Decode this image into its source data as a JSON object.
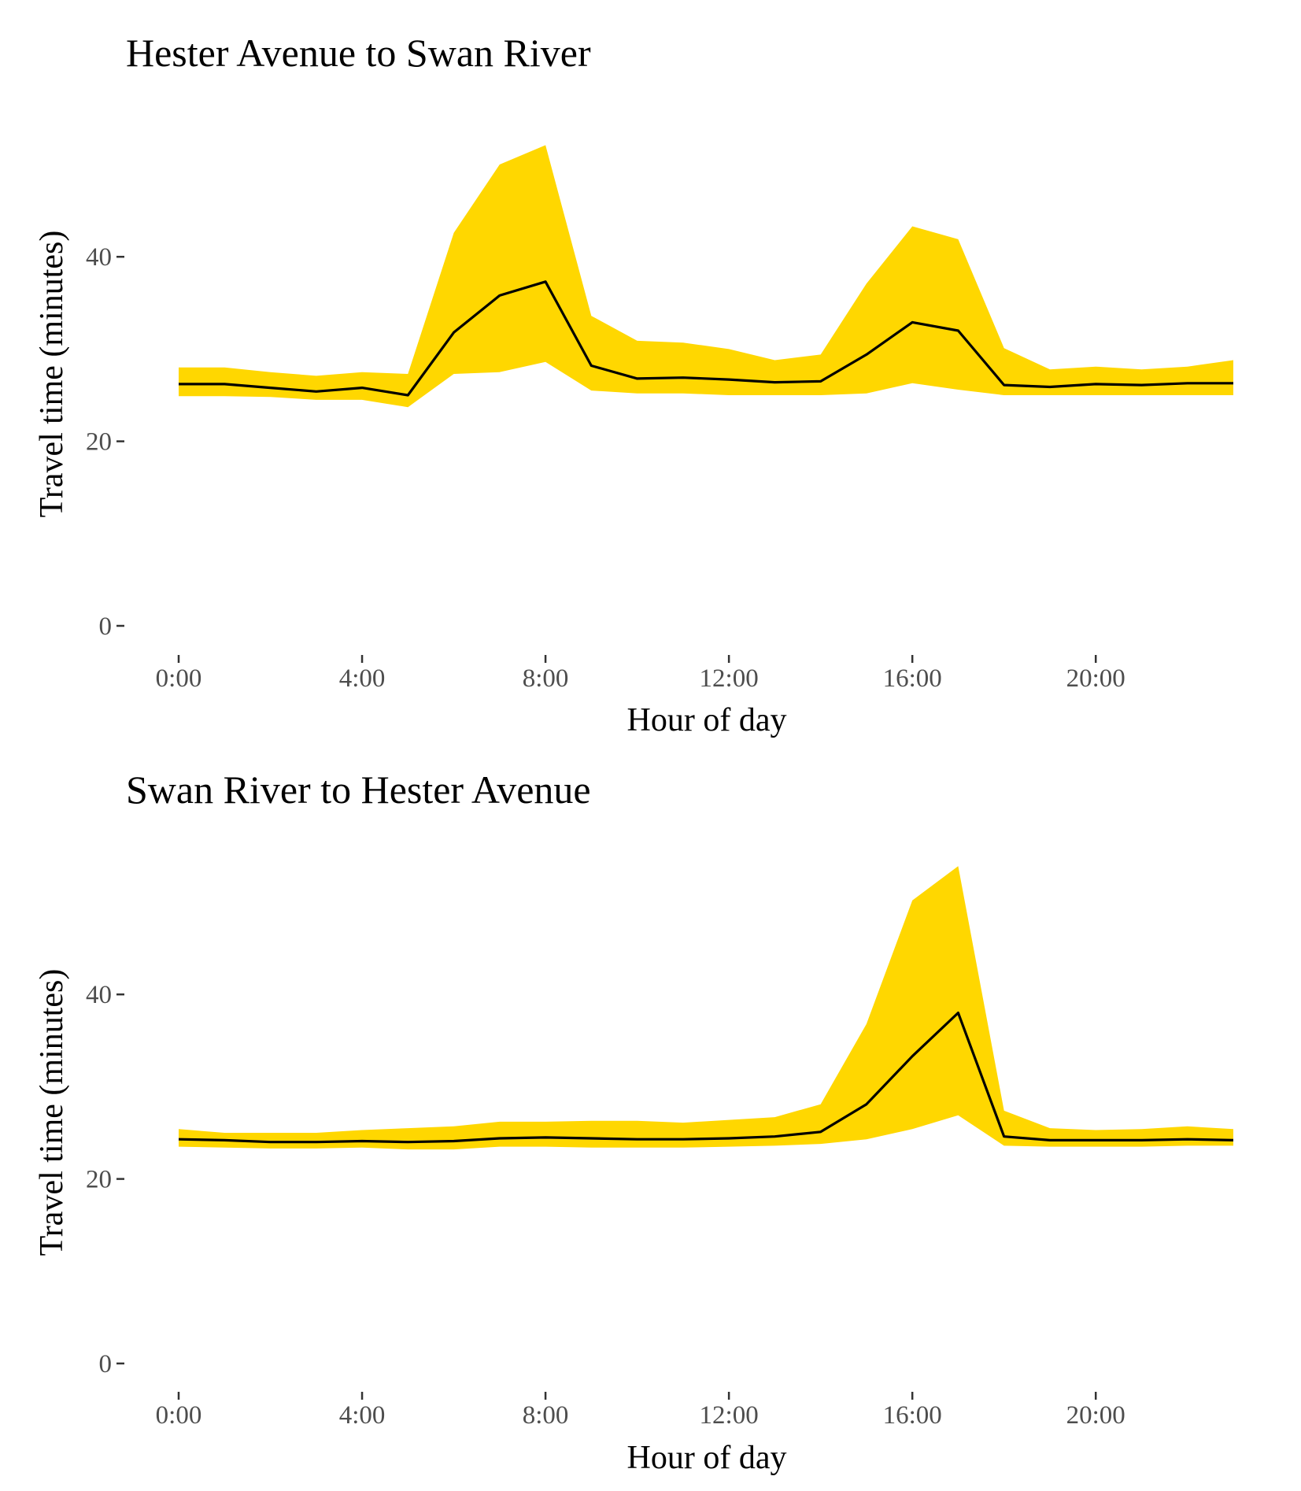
{
  "chart_data": [
    {
      "type": "area",
      "title": "Hester Avenue to Swan River",
      "xlabel": "Hour of day",
      "ylabel": "Travel time (minutes)",
      "xlim": [
        0,
        23
      ],
      "ylim": [
        0,
        55
      ],
      "x_ticks": [
        0,
        4,
        8,
        12,
        16,
        20
      ],
      "x_tick_labels": [
        "0:00",
        "4:00",
        "8:00",
        "12:00",
        "16:00",
        "20:00"
      ],
      "y_ticks": [
        0,
        20,
        40
      ],
      "y_tick_labels": [
        "0",
        "20",
        "40"
      ],
      "grid": false,
      "band_color": "#FFD700",
      "line_color": "#000000",
      "x": [
        0,
        1,
        2,
        3,
        4,
        5,
        6,
        7,
        8,
        9,
        10,
        11,
        12,
        13,
        14,
        15,
        16,
        17,
        18,
        19,
        20,
        21,
        22,
        23
      ],
      "median": [
        26.2,
        26.2,
        25.8,
        25.4,
        25.8,
        25.0,
        31.8,
        35.8,
        37.3,
        28.2,
        26.8,
        26.9,
        26.7,
        26.4,
        26.5,
        29.4,
        32.9,
        32.0,
        26.1,
        25.9,
        26.2,
        26.1,
        26.3,
        26.3
      ],
      "lower": [
        24.9,
        24.9,
        24.8,
        24.5,
        24.5,
        23.7,
        27.3,
        27.5,
        28.6,
        25.5,
        25.2,
        25.2,
        25.0,
        25.0,
        25.0,
        25.2,
        26.3,
        25.6,
        25.0,
        25.0,
        25.0,
        25.0,
        25.0,
        25.0
      ],
      "upper": [
        28.0,
        28.0,
        27.5,
        27.1,
        27.5,
        27.3,
        42.6,
        50.0,
        52.1,
        33.6,
        30.9,
        30.7,
        30.0,
        28.8,
        29.4,
        37.1,
        43.3,
        41.9,
        30.1,
        27.8,
        28.1,
        27.8,
        28.1,
        28.8
      ]
    },
    {
      "type": "area",
      "title": "Swan River to Hester Avenue",
      "xlabel": "Hour of day",
      "ylabel": "Travel time (minutes)",
      "xlim": [
        0,
        23
      ],
      "ylim": [
        0,
        55
      ],
      "x_ticks": [
        0,
        4,
        8,
        12,
        16,
        20
      ],
      "x_tick_labels": [
        "0:00",
        "4:00",
        "8:00",
        "12:00",
        "16:00",
        "20:00"
      ],
      "y_ticks": [
        0,
        20,
        40
      ],
      "y_tick_labels": [
        "0",
        "20",
        "40"
      ],
      "grid": false,
      "band_color": "#FFD700",
      "line_color": "#000000",
      "x": [
        0,
        1,
        2,
        3,
        4,
        5,
        6,
        7,
        8,
        9,
        10,
        11,
        12,
        13,
        14,
        15,
        16,
        17,
        18,
        19,
        20,
        21,
        22,
        23
      ],
      "median": [
        24.3,
        24.2,
        24.0,
        24.0,
        24.1,
        24.0,
        24.1,
        24.4,
        24.5,
        24.4,
        24.3,
        24.3,
        24.4,
        24.6,
        25.1,
        28.1,
        33.3,
        38.0,
        24.6,
        24.2,
        24.2,
        24.2,
        24.3,
        24.2
      ],
      "lower": [
        23.5,
        23.4,
        23.3,
        23.3,
        23.4,
        23.2,
        23.2,
        23.5,
        23.5,
        23.4,
        23.4,
        23.4,
        23.5,
        23.6,
        23.8,
        24.3,
        25.4,
        26.9,
        23.6,
        23.5,
        23.5,
        23.5,
        23.6,
        23.6
      ],
      "upper": [
        25.4,
        25.0,
        25.0,
        25.0,
        25.3,
        25.5,
        25.7,
        26.2,
        26.2,
        26.3,
        26.3,
        26.1,
        26.4,
        26.7,
        28.1,
        36.8,
        50.2,
        53.9,
        27.4,
        25.5,
        25.3,
        25.4,
        25.7,
        25.4
      ]
    }
  ]
}
